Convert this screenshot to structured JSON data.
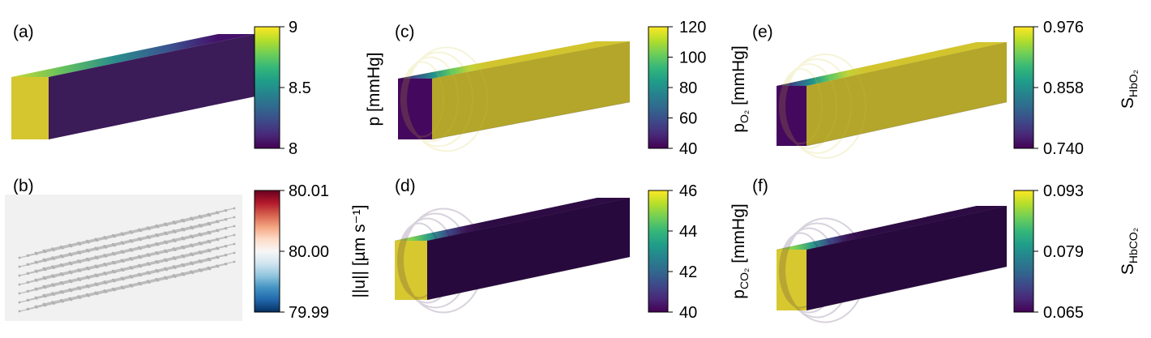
{
  "panels": [
    {
      "letter": "(a)",
      "kind": "block",
      "front": "#d5c630",
      "top_gradient": [
        "#c9d934",
        "#64c15e",
        "#2a8d8c",
        "#3a5590",
        "#45106a"
      ],
      "side": "#3b1b58",
      "colorbar": {
        "cmap": "viridis",
        "ticks": [
          "9",
          "8.5",
          "8"
        ],
        "label_main": "",
        "label_sub": "",
        "label_suffix": ""
      }
    },
    {
      "letter": "(b)",
      "kind": "arrows",
      "colorbar": {
        "cmap": "rdbu",
        "ticks": [
          "80.01",
          "80.00",
          "79.99"
        ],
        "label_main": "||u|| [µm s⁻¹]",
        "label_sub": "",
        "label_suffix": ""
      }
    },
    {
      "letter": "(c)",
      "kind": "front-dark",
      "front": "#44085e",
      "top": "#d2c42d",
      "side": "#b3a62b",
      "gradient": [
        "#44085e",
        "#3b528b",
        "#21918c",
        "#5ec962",
        "#c2d23a",
        "#d2c42d"
      ],
      "colorbar": {
        "cmap": "viridis",
        "ticks": [
          "120",
          "100",
          "80",
          "60",
          "40"
        ],
        "label_main": "p [mmHg]",
        "label_sub": "",
        "label_suffix": ""
      }
    },
    {
      "letter": "(d)",
      "kind": "front-bright",
      "front": "#d7c830",
      "top": "#2d0b43",
      "side": "#28093e",
      "gradient": [
        "#d7c830",
        "#7ad151",
        "#2a9a8a",
        "#3e4a89",
        "#3b1556",
        "#2d0b43"
      ],
      "colorbar": {
        "cmap": "viridis",
        "ticks": [
          "46",
          "44",
          "42",
          "40"
        ],
        "label_main": "p",
        "label_sub": "CO₂",
        "label_suffix": " [mmHg]"
      }
    },
    {
      "letter": "(e)",
      "kind": "front-dark",
      "front": "#44085e",
      "top": "#d2c42d",
      "side": "#b3a62b",
      "gradient": [
        "#44085e",
        "#3b528b",
        "#21918c",
        "#5ec962",
        "#c2d23a",
        "#d2c42d"
      ],
      "colorbar": {
        "cmap": "viridis",
        "ticks": [
          "0.976",
          "0.858",
          "0.740"
        ],
        "label_main": "S",
        "label_sub": "HbO₂",
        "label_suffix": ""
      }
    },
    {
      "letter": "(f)",
      "kind": "front-bright",
      "front": "#d7c830",
      "top": "#2d0b43",
      "side": "#28093e",
      "gradient": [
        "#d7c830",
        "#7ad151",
        "#2a9a8a",
        "#3e4a89",
        "#3b1556",
        "#2d0b43"
      ],
      "colorbar": {
        "cmap": "viridis",
        "ticks": [
          "0.093",
          "0.079",
          "0.065"
        ],
        "label_main": "S",
        "label_sub": "HbCO₂",
        "label_suffix": ""
      }
    }
  ],
  "extra_labels": {
    "c_right": {
      "main": "p",
      "sub": "O₂",
      "suffix": " [mmHg]"
    }
  },
  "colormaps": {
    "viridis": [
      "#fde725",
      "#b5de2b",
      "#6ece58",
      "#35b779",
      "#1f9e89",
      "#26828e",
      "#31688e",
      "#3e4989",
      "#482878",
      "#440154"
    ],
    "rdbu": [
      "#67001f",
      "#b2182b",
      "#d6604d",
      "#f4a582",
      "#fddbc7",
      "#f7f7f7",
      "#d1e5f0",
      "#92c5de",
      "#4393c3",
      "#2166ac",
      "#053061"
    ]
  }
}
